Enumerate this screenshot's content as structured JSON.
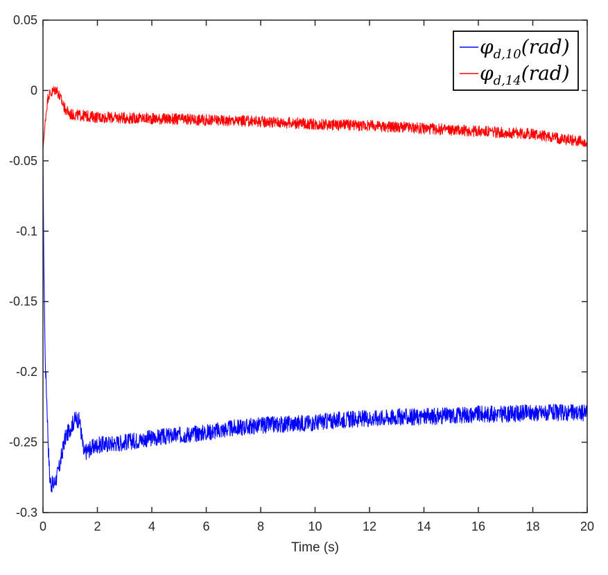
{
  "chart_data": {
    "type": "line",
    "title": "",
    "xlabel": "Time (s)",
    "ylabel": "",
    "xlim": [
      0,
      20
    ],
    "ylim": [
      -0.3,
      0.05
    ],
    "xticks": [
      0,
      2,
      4,
      6,
      8,
      10,
      12,
      14,
      16,
      18,
      20
    ],
    "xtick_labels": [
      "0",
      "2",
      "4",
      "6",
      "8",
      "10",
      "12",
      "14",
      "16",
      "18",
      "20"
    ],
    "yticks": [
      0.05,
      0,
      -0.05,
      -0.1,
      -0.15,
      -0.2,
      -0.25,
      -0.3
    ],
    "ytick_labels": [
      "0.05",
      "0",
      "-0.05",
      "-0.1",
      "-0.15",
      "-0.2",
      "-0.25",
      "-0.3"
    ],
    "grid": false,
    "legend_position": "top-right",
    "series": [
      {
        "name": "φd,10(rad)",
        "symbol": "φ",
        "subscript": "d,10",
        "unit": "(rad)",
        "color": "#0000ff",
        "noise": 0.006,
        "x": [
          0,
          0.03,
          0.08,
          0.15,
          0.2,
          0.25,
          0.3,
          0.4,
          0.5,
          0.6,
          0.7,
          0.8,
          1.0,
          1.2,
          1.35,
          1.5,
          1.7,
          2.0,
          3.0,
          4.0,
          5.0,
          6.0,
          7.0,
          8.0,
          9.0,
          10.0,
          11.0,
          12.0,
          13.0,
          14.0,
          15.0,
          16.0,
          17.0,
          18.0,
          19.0,
          20.0
        ],
        "y": [
          -0.04,
          -0.12,
          -0.19,
          -0.225,
          -0.255,
          -0.275,
          -0.28,
          -0.28,
          -0.275,
          -0.268,
          -0.258,
          -0.248,
          -0.24,
          -0.233,
          -0.235,
          -0.258,
          -0.255,
          -0.252,
          -0.25,
          -0.247,
          -0.245,
          -0.243,
          -0.24,
          -0.238,
          -0.237,
          -0.236,
          -0.234,
          -0.233,
          -0.232,
          -0.232,
          -0.231,
          -0.23,
          -0.23,
          -0.229,
          -0.229,
          -0.229
        ]
      },
      {
        "name": "φd,14(rad)",
        "symbol": "φ",
        "subscript": "d,14",
        "unit": "(rad)",
        "color": "#ff0000",
        "noise": 0.004,
        "x": [
          0,
          0.05,
          0.1,
          0.15,
          0.2,
          0.3,
          0.4,
          0.5,
          0.6,
          0.7,
          0.8,
          1.0,
          1.5,
          2.0,
          4.0,
          6.0,
          8.0,
          10.0,
          12.0,
          14.0,
          16.0,
          18.0,
          20.0
        ],
        "y": [
          -0.042,
          -0.03,
          -0.018,
          -0.01,
          -0.003,
          -0.002,
          0.0,
          0.001,
          -0.004,
          -0.008,
          -0.013,
          -0.017,
          -0.018,
          -0.019,
          -0.02,
          -0.021,
          -0.022,
          -0.024,
          -0.025,
          -0.027,
          -0.029,
          -0.031,
          -0.037
        ]
      }
    ]
  }
}
